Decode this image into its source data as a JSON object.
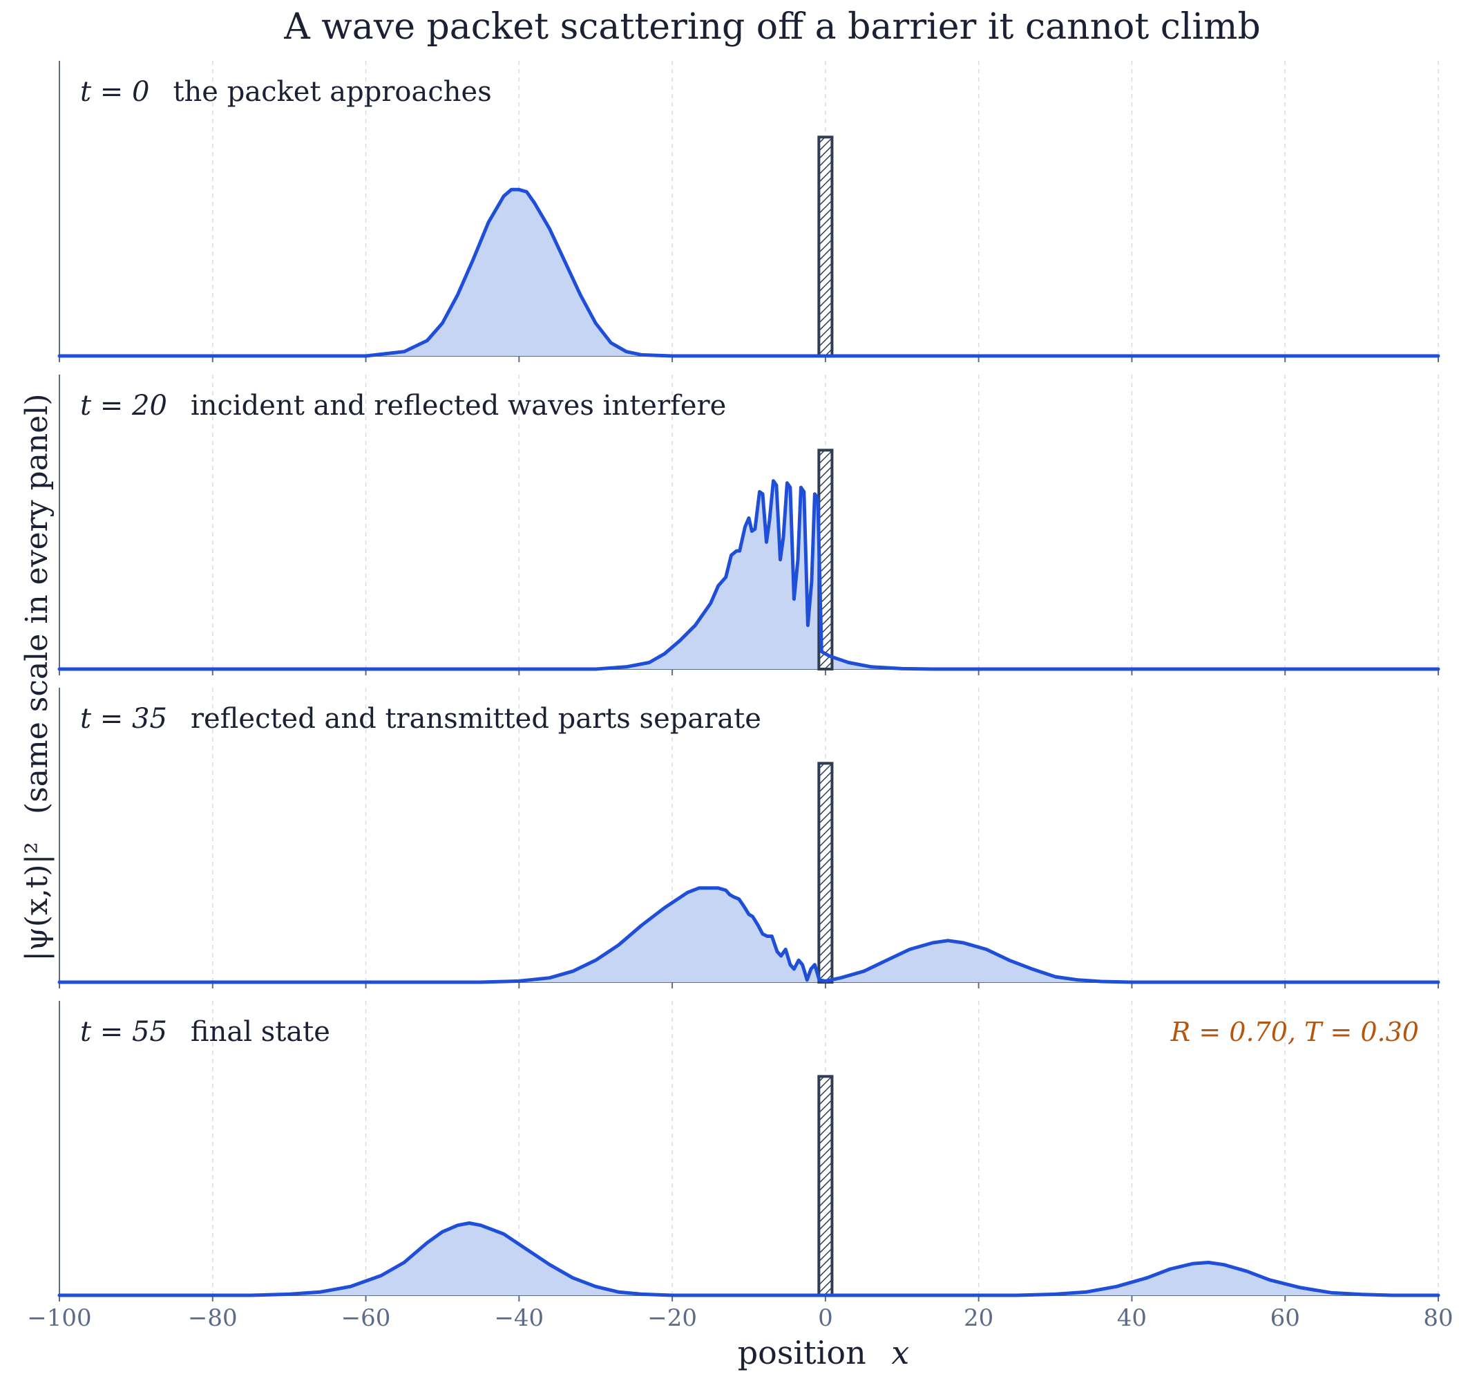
{
  "title": "A wave packet scattering off a barrier it cannot climb",
  "colors": {
    "curve": "#1f4ed8",
    "fill": "#c7d5f5",
    "barrier": "#2f3d52",
    "axis": "#5c6b86",
    "grid": "#d8dbe2",
    "annotation": "#b5560f"
  },
  "chart_data": {
    "type": "area",
    "xlabel_text": "position",
    "xlabel_symbol": "x",
    "ylabel_main": "(same scale in every panel)",
    "ylabel_symbol": "|ψ(x,t)|²",
    "xlim": [
      -100,
      80
    ],
    "ylim": [
      0,
      1.2
    ],
    "xticks": [
      -100,
      -80,
      -60,
      -40,
      -20,
      0,
      20,
      40,
      60,
      80
    ],
    "xtick_labels": [
      "−100",
      "−80",
      "−60",
      "−40",
      "−20",
      "0",
      "20",
      "40",
      "60",
      "80"
    ],
    "grid": true,
    "barrier": {
      "x_min": -0.5,
      "x_max": 0.5,
      "height": 1.0
    },
    "panels": [
      {
        "t_label": "t = 0",
        "caption": "the packet approaches",
        "points": [
          [
            -100,
            0
          ],
          [
            -60,
            0
          ],
          [
            -55,
            0.02
          ],
          [
            -52,
            0.07
          ],
          [
            -50,
            0.15
          ],
          [
            -48,
            0.28
          ],
          [
            -46,
            0.44
          ],
          [
            -44,
            0.61
          ],
          [
            -42,
            0.73
          ],
          [
            -41,
            0.76
          ],
          [
            -40,
            0.76
          ],
          [
            -39,
            0.75
          ],
          [
            -38,
            0.7
          ],
          [
            -36,
            0.58
          ],
          [
            -34,
            0.43
          ],
          [
            -32,
            0.28
          ],
          [
            -30,
            0.15
          ],
          [
            -28,
            0.06
          ],
          [
            -26,
            0.02
          ],
          [
            -24,
            0.005
          ],
          [
            -20,
            0
          ],
          [
            80,
            0
          ]
        ]
      },
      {
        "t_label": "t = 20",
        "caption": "incident and reflected waves interfere",
        "points": [
          [
            -100,
            0
          ],
          [
            -30,
            0
          ],
          [
            -26,
            0.01
          ],
          [
            -23,
            0.03
          ],
          [
            -21,
            0.07
          ],
          [
            -19,
            0.13
          ],
          [
            -17,
            0.2
          ],
          [
            -16,
            0.25
          ],
          [
            -15,
            0.3
          ],
          [
            -14,
            0.38
          ],
          [
            -13,
            0.42
          ],
          [
            -12.3,
            0.52
          ],
          [
            -11.6,
            0.54
          ],
          [
            -11.2,
            0.54
          ],
          [
            -10.5,
            0.65
          ],
          [
            -10,
            0.69
          ],
          [
            -9.6,
            0.63
          ],
          [
            -9.2,
            0.64
          ],
          [
            -8.6,
            0.81
          ],
          [
            -8.2,
            0.8
          ],
          [
            -7.7,
            0.58
          ],
          [
            -7.3,
            0.68
          ],
          [
            -6.8,
            0.86
          ],
          [
            -6.4,
            0.84
          ],
          [
            -5.9,
            0.5
          ],
          [
            -5.5,
            0.6
          ],
          [
            -5,
            0.85
          ],
          [
            -4.6,
            0.83
          ],
          [
            -4.1,
            0.32
          ],
          [
            -3.6,
            0.5
          ],
          [
            -3.2,
            0.83
          ],
          [
            -2.8,
            0.81
          ],
          [
            -2.3,
            0.2
          ],
          [
            -1.8,
            0.4
          ],
          [
            -1.4,
            0.8
          ],
          [
            -1,
            0.78
          ],
          [
            -0.5,
            0.08
          ],
          [
            0.5,
            0.06
          ],
          [
            3,
            0.03
          ],
          [
            6,
            0.01
          ],
          [
            10,
            0.002
          ],
          [
            14,
            0
          ],
          [
            80,
            0
          ]
        ]
      },
      {
        "t_label": "t = 35",
        "caption": "reflected and transmitted parts separate",
        "points": [
          [
            -100,
            0
          ],
          [
            -45,
            0
          ],
          [
            -40,
            0.005
          ],
          [
            -36,
            0.02
          ],
          [
            -33,
            0.05
          ],
          [
            -30,
            0.1
          ],
          [
            -27,
            0.17
          ],
          [
            -24,
            0.26
          ],
          [
            -21,
            0.34
          ],
          [
            -18,
            0.41
          ],
          [
            -16.5,
            0.43
          ],
          [
            -15,
            0.43
          ],
          [
            -14,
            0.43
          ],
          [
            -13,
            0.42
          ],
          [
            -12.5,
            0.4
          ],
          [
            -12,
            0.39
          ],
          [
            -11.3,
            0.38
          ],
          [
            -10.7,
            0.35
          ],
          [
            -10,
            0.31
          ],
          [
            -9.5,
            0.3
          ],
          [
            -8.8,
            0.26
          ],
          [
            -8.2,
            0.22
          ],
          [
            -7.6,
            0.21
          ],
          [
            -7,
            0.21
          ],
          [
            -6.3,
            0.14
          ],
          [
            -5.8,
            0.12
          ],
          [
            -5.2,
            0.15
          ],
          [
            -4.6,
            0.08
          ],
          [
            -4.1,
            0.06
          ],
          [
            -3.5,
            0.1
          ],
          [
            -3,
            0.08
          ],
          [
            -2.4,
            0.01
          ],
          [
            -1.9,
            0.06
          ],
          [
            -1.4,
            0.08
          ],
          [
            -0.8,
            0.01
          ],
          [
            0,
            0.005
          ],
          [
            2,
            0.02
          ],
          [
            5,
            0.05
          ],
          [
            8,
            0.1
          ],
          [
            11,
            0.15
          ],
          [
            14,
            0.18
          ],
          [
            16,
            0.19
          ],
          [
            18,
            0.18
          ],
          [
            21,
            0.15
          ],
          [
            24,
            0.1
          ],
          [
            27,
            0.06
          ],
          [
            30,
            0.025
          ],
          [
            33,
            0.01
          ],
          [
            36,
            0.003
          ],
          [
            40,
            0
          ],
          [
            80,
            0
          ]
        ]
      },
      {
        "t_label": "t = 55",
        "caption": "final state",
        "annotation": "R = 0.70,   T = 0.30",
        "points": [
          [
            -100,
            0
          ],
          [
            -75,
            0
          ],
          [
            -70,
            0.005
          ],
          [
            -66,
            0.015
          ],
          [
            -62,
            0.04
          ],
          [
            -58,
            0.09
          ],
          [
            -55,
            0.15
          ],
          [
            -52,
            0.24
          ],
          [
            -50,
            0.29
          ],
          [
            -48,
            0.32
          ],
          [
            -46.5,
            0.33
          ],
          [
            -45,
            0.32
          ],
          [
            -42,
            0.28
          ],
          [
            -39,
            0.21
          ],
          [
            -36,
            0.14
          ],
          [
            -33,
            0.08
          ],
          [
            -30,
            0.04
          ],
          [
            -27,
            0.015
          ],
          [
            -24,
            0.005
          ],
          [
            -20,
            0
          ],
          [
            25,
            0
          ],
          [
            30,
            0.005
          ],
          [
            34,
            0.015
          ],
          [
            38,
            0.04
          ],
          [
            42,
            0.08
          ],
          [
            45,
            0.12
          ],
          [
            48,
            0.145
          ],
          [
            50,
            0.15
          ],
          [
            52,
            0.14
          ],
          [
            55,
            0.11
          ],
          [
            58,
            0.07
          ],
          [
            62,
            0.035
          ],
          [
            66,
            0.012
          ],
          [
            70,
            0.004
          ],
          [
            74,
            0
          ],
          [
            80,
            0
          ]
        ]
      }
    ]
  }
}
